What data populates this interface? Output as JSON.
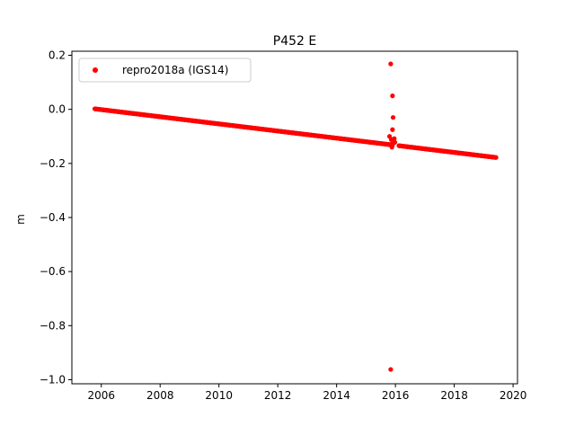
{
  "chart_data": {
    "type": "scatter",
    "title": "P452 E",
    "xlabel": "",
    "ylabel": "m",
    "xlim": [
      2005.0,
      2020.15
    ],
    "ylim": [
      -1.015,
      0.215
    ],
    "xticks": [
      2006,
      2008,
      2010,
      2012,
      2014,
      2016,
      2018,
      2020
    ],
    "yticks": [
      0.2,
      0.0,
      -0.2,
      -0.4,
      -0.6,
      -0.8,
      -1.0
    ],
    "xtick_labels": [
      "2006",
      "2008",
      "2010",
      "2012",
      "2014",
      "2016",
      "2018",
      "2020"
    ],
    "ytick_labels": [
      "0.2",
      "0.0",
      "−0.2",
      "−0.4",
      "−0.6",
      "−0.8",
      "−1.0"
    ],
    "grid": false,
    "legend": {
      "placement": "top-left",
      "entries": [
        "repro2018a (IGS14)"
      ]
    },
    "series": [
      {
        "name": "repro2018a (IGS14)",
        "color": "#ff0000",
        "marker": "circle",
        "trend": {
          "x_start": 2005.78,
          "y_start": 0.002,
          "x_end": 2019.42,
          "y_end": -0.178,
          "break_x": 2015.85,
          "gap": [
            2015.9,
            2016.1
          ]
        },
        "outliers": {
          "x": [
            2015.84,
            2015.86,
            2015.88,
            2015.9,
            2015.92,
            2015.8,
            2015.9,
            2015.96,
            2015.98,
            2015.88,
            2015.84
          ],
          "y": [
            0.168,
            -0.112,
            -0.14,
            0.05,
            -0.03,
            -0.1,
            -0.075,
            -0.108,
            -0.122,
            -0.128,
            -0.962
          ]
        }
      }
    ]
  }
}
